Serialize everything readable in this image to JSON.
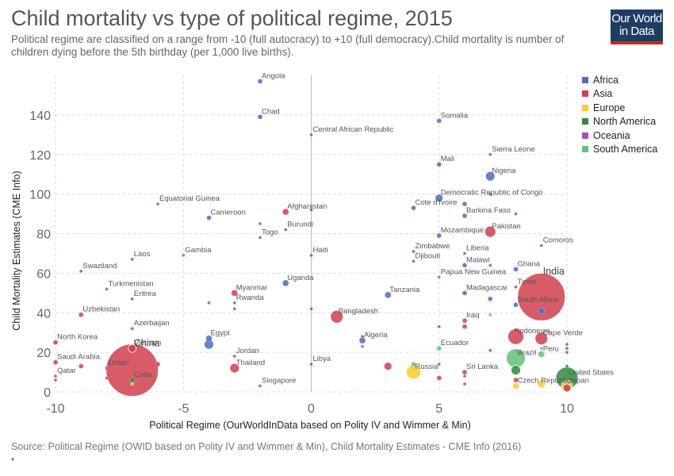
{
  "page": {
    "title": "Child mortality vs type of political regime, 2015",
    "subtitle": "Political regime are classified on a range from -10 (full autocracy) to +10 (full democracy).Child mortality is number of children dying before the 5th birthday (per 1,000 live births).",
    "logo_line1": "Our World",
    "logo_line2": "in Data",
    "source": "Source: Political Regime (OWID based on Polity IV and Wimmer & Min), Child Mortality Estimates - CME Info (2016)",
    "source_dot": "•"
  },
  "legend": [
    {
      "name": "Africa",
      "color": "#4c6cbf"
    },
    {
      "name": "Asia",
      "color": "#d0404e"
    },
    {
      "name": "Europe",
      "color": "#fbca2c"
    },
    {
      "name": "North America",
      "color": "#2f8b3e"
    },
    {
      "name": "Oceania",
      "color": "#a651b8"
    },
    {
      "name": "South America",
      "color": "#5fc279"
    }
  ],
  "chart_data": {
    "type": "scatter",
    "title": "Child mortality vs type of political regime, 2015",
    "xlabel": "Political Regime (OurWorldInData based on Polity IV and Wimmer & Min)",
    "ylabel": "Child Mortality Estimates (CME Info)",
    "xlim": [
      -10,
      10
    ],
    "ylim": [
      0,
      160
    ],
    "x_ticks": [
      "-10",
      "-5",
      "0",
      "5",
      "10"
    ],
    "y_ticks": [
      "0",
      "20",
      "40",
      "60",
      "80",
      "100",
      "120",
      "140"
    ],
    "grid": true,
    "legend_position": "right",
    "size_note": "bubble size proportional to population",
    "points": [
      {
        "label": "Angola",
        "x": -2,
        "y": 157,
        "region": "Africa",
        "size": 3
      },
      {
        "label": "Chad",
        "x": -2,
        "y": 139,
        "region": "Africa",
        "size": 3
      },
      {
        "label": "Central African Republic",
        "x": 0,
        "y": 130,
        "region": "Africa",
        "size": 2
      },
      {
        "label": "Somalia",
        "x": 5,
        "y": 137,
        "region": "Africa",
        "size": 3
      },
      {
        "label": "Sierra Leone",
        "x": 7,
        "y": 120,
        "region": "Africa",
        "size": 2
      },
      {
        "label": "Mali",
        "x": 5,
        "y": 115,
        "region": "Africa",
        "size": 3
      },
      {
        "label": "Nigeria",
        "x": 7,
        "y": 109,
        "region": "Africa",
        "size": 6
      },
      {
        "label": "Democratic Republic of Congo",
        "x": 5,
        "y": 98,
        "region": "Africa",
        "size": 5
      },
      {
        "label": "",
        "x": 7,
        "y": 100,
        "region": "Africa",
        "size": 2
      },
      {
        "label": "Equatorial Guinea",
        "x": -6,
        "y": 95,
        "region": "Africa",
        "size": 2
      },
      {
        "label": "Afghanistan",
        "x": -1,
        "y": 91,
        "region": "Asia",
        "size": 4
      },
      {
        "label": "",
        "x": 0,
        "y": 92,
        "region": "Africa",
        "size": 2
      },
      {
        "label": "Cameroon",
        "x": -4,
        "y": 88,
        "region": "Africa",
        "size": 3
      },
      {
        "label": "Cote d'Ivoire",
        "x": 4,
        "y": 93,
        "region": "Africa",
        "size": 3
      },
      {
        "label": "",
        "x": 6,
        "y": 95,
        "region": "Africa",
        "size": 3
      },
      {
        "label": "Burkina Faso",
        "x": 6,
        "y": 89,
        "region": "Africa",
        "size": 3
      },
      {
        "label": "",
        "x": 8,
        "y": 90,
        "region": "Africa",
        "size": 2
      },
      {
        "label": "Burundi",
        "x": -1,
        "y": 82,
        "region": "Africa",
        "size": 2
      },
      {
        "label": "",
        "x": -2,
        "y": 85,
        "region": "Africa",
        "size": 2
      },
      {
        "label": "Togo",
        "x": -2,
        "y": 78,
        "region": "Africa",
        "size": 2
      },
      {
        "label": "Pakistan",
        "x": 7,
        "y": 81,
        "region": "Asia",
        "size": 7
      },
      {
        "label": "Mozambique",
        "x": 5,
        "y": 79,
        "region": "Africa",
        "size": 3
      },
      {
        "label": "Comoros",
        "x": 9,
        "y": 74,
        "region": "Africa",
        "size": 2
      },
      {
        "label": "Gambia",
        "x": -5,
        "y": 69,
        "region": "Oceania",
        "size": 2
      },
      {
        "label": "Haiti",
        "x": 0,
        "y": 69,
        "region": "North America",
        "size": 2
      },
      {
        "label": "Laos",
        "x": -7,
        "y": 67,
        "region": "Asia",
        "size": 2
      },
      {
        "label": "Zimbabwe",
        "x": 4,
        "y": 71,
        "region": "Africa",
        "size": 2
      },
      {
        "label": "Djibouti",
        "x": 4,
        "y": 66,
        "region": "Africa",
        "size": 2
      },
      {
        "label": "Liberia",
        "x": 6,
        "y": 70,
        "region": "Africa",
        "size": 2
      },
      {
        "label": "Malawi",
        "x": 6,
        "y": 64,
        "region": "Africa",
        "size": 3
      },
      {
        "label": "Ghana",
        "x": 8,
        "y": 62,
        "region": "Africa",
        "size": 3
      },
      {
        "label": "",
        "x": 7,
        "y": 64,
        "region": "Africa",
        "size": 2
      },
      {
        "label": "Swaziland",
        "x": -9,
        "y": 61,
        "region": "Africa",
        "size": 2
      },
      {
        "label": "Papua New Guinea",
        "x": 5,
        "y": 58,
        "region": "Oceania",
        "size": 2
      },
      {
        "label": "Uganda",
        "x": -1,
        "y": 55,
        "region": "Africa",
        "size": 4
      },
      {
        "label": "Turkmenistan",
        "x": -8,
        "y": 52,
        "region": "Asia",
        "size": 2
      },
      {
        "label": "Myanmar",
        "x": -3,
        "y": 50,
        "region": "Asia",
        "size": 4
      },
      {
        "label": "Tanzania",
        "x": 3,
        "y": 49,
        "region": "Africa",
        "size": 4
      },
      {
        "label": "Madagascar",
        "x": 6,
        "y": 50,
        "region": "Africa",
        "size": 3
      },
      {
        "label": "Timor",
        "x": 8,
        "y": 53,
        "region": "Asia",
        "size": 2
      },
      {
        "label": "India",
        "x": 9,
        "y": 48,
        "region": "Asia",
        "size": 30
      },
      {
        "label": "Eritrea",
        "x": -7,
        "y": 47,
        "region": "Africa",
        "size": 2
      },
      {
        "label": "Rwanda",
        "x": -3,
        "y": 45,
        "region": "Africa",
        "size": 2
      },
      {
        "label": "",
        "x": -4,
        "y": 45,
        "region": "Africa",
        "size": 2
      },
      {
        "label": "",
        "x": 7,
        "y": 47,
        "region": "Africa",
        "size": 3
      },
      {
        "label": "South Africa",
        "x": 8,
        "y": 44,
        "region": "Africa",
        "size": 3
      },
      {
        "label": "",
        "x": -3,
        "y": 42,
        "region": "Africa",
        "size": 2
      },
      {
        "label": "",
        "x": 0,
        "y": 42,
        "region": "Asia",
        "size": 2
      },
      {
        "label": "Bangladesh",
        "x": 1,
        "y": 38,
        "region": "Asia",
        "size": 8
      },
      {
        "label": "Uzbekistan",
        "x": -9,
        "y": 39,
        "region": "Asia",
        "size": 3
      },
      {
        "label": "",
        "x": 9,
        "y": 41,
        "region": "Africa",
        "size": 4
      },
      {
        "label": "",
        "x": 7,
        "y": 39,
        "region": "South America",
        "size": 2
      },
      {
        "label": "Iraq",
        "x": 6,
        "y": 36,
        "region": "Asia",
        "size": 3
      },
      {
        "label": "",
        "x": 5,
        "y": 33,
        "region": "Asia",
        "size": 2
      },
      {
        "label": "",
        "x": 6,
        "y": 33,
        "region": "Asia",
        "size": 3
      },
      {
        "label": "Azerbaijan",
        "x": -7,
        "y": 32,
        "region": "Asia",
        "size": 2
      },
      {
        "label": "Indonesia",
        "x": 8,
        "y": 28,
        "region": "Asia",
        "size": 10
      },
      {
        "label": "",
        "x": 8,
        "y": 31,
        "region": "Asia",
        "size": 3
      },
      {
        "label": "Cape Verde",
        "x": 9,
        "y": 27,
        "region": "Asia",
        "size": 8
      },
      {
        "label": "",
        "x": 10,
        "y": 24,
        "region": "Africa",
        "size": 2
      },
      {
        "label": "",
        "x": 10,
        "y": 22,
        "region": "Asia",
        "size": 2
      },
      {
        "label": "",
        "x": 10,
        "y": 20,
        "region": "North America",
        "size": 2
      },
      {
        "label": "Egypt",
        "x": -4,
        "y": 27,
        "region": "Africa",
        "size": 4
      },
      {
        "label": "",
        "x": -4,
        "y": 24,
        "region": "Africa",
        "size": 6
      },
      {
        "label": "Algeria",
        "x": 2,
        "y": 26,
        "region": "Africa",
        "size": 4
      },
      {
        "label": "",
        "x": 2,
        "y": 28,
        "region": "Asia",
        "size": 2
      },
      {
        "label": "",
        "x": 2,
        "y": 23,
        "region": "Oceania",
        "size": 2
      },
      {
        "label": "North Korea",
        "x": -10,
        "y": 25,
        "region": "Asia",
        "size": 3
      },
      {
        "label": "Vietnam",
        "x": -7,
        "y": 22,
        "region": "Asia",
        "size": 5
      },
      {
        "label": "China",
        "x": -7,
        "y": 11,
        "region": "Asia",
        "size": 33
      },
      {
        "label": "Ecuador",
        "x": 5,
        "y": 22,
        "region": "South America",
        "size": 3
      },
      {
        "label": "Brazil",
        "x": 8,
        "y": 17,
        "region": "South America",
        "size": 12
      },
      {
        "label": "",
        "x": 7,
        "y": 21,
        "region": "Asia",
        "size": 2
      },
      {
        "label": "Peru",
        "x": 9,
        "y": 19,
        "region": "South America",
        "size": 4
      },
      {
        "label": "",
        "x": 9,
        "y": 22,
        "region": "South America",
        "size": 2
      },
      {
        "label": "Jordan",
        "x": -3,
        "y": 18,
        "region": "Asia",
        "size": 2
      },
      {
        "label": "Thailand",
        "x": -3,
        "y": 12,
        "region": "Asia",
        "size": 6
      },
      {
        "label": "Saudi Arabia",
        "x": -10,
        "y": 15,
        "region": "Asia",
        "size": 3
      },
      {
        "label": "",
        "x": -9,
        "y": 13,
        "region": "Asia",
        "size": 3
      },
      {
        "label": "Oman",
        "x": -8,
        "y": 12,
        "region": "Asia",
        "size": 2
      },
      {
        "label": "",
        "x": -6,
        "y": 14,
        "region": "Asia",
        "size": 3
      },
      {
        "label": "Cuba",
        "x": -7,
        "y": 6,
        "region": "North America",
        "size": 3
      },
      {
        "label": "Qatar",
        "x": -10,
        "y": 8,
        "region": "Asia",
        "size": 2
      },
      {
        "label": "",
        "x": -10,
        "y": 6,
        "region": "Asia",
        "size": 2
      },
      {
        "label": "",
        "x": -8,
        "y": 7,
        "region": "Asia",
        "size": 2
      },
      {
        "label": "",
        "x": -7,
        "y": 4,
        "region": "Europe",
        "size": 2
      },
      {
        "label": "Libya",
        "x": 0,
        "y": 14,
        "region": "Africa",
        "size": 2
      },
      {
        "label": "Russia",
        "x": 4,
        "y": 10,
        "region": "Europe",
        "size": 9
      },
      {
        "label": "",
        "x": 4,
        "y": 14,
        "region": "South America",
        "size": 3
      },
      {
        "label": "",
        "x": 3,
        "y": 13,
        "region": "Asia",
        "size": 5
      },
      {
        "label": "",
        "x": 5,
        "y": 14,
        "region": "Asia",
        "size": 2
      },
      {
        "label": "Sri Lanka",
        "x": 6,
        "y": 10,
        "region": "Asia",
        "size": 3
      },
      {
        "label": "",
        "x": 6,
        "y": 8,
        "region": "Asia",
        "size": 2
      },
      {
        "label": "",
        "x": 5,
        "y": 7,
        "region": "Asia",
        "size": 3
      },
      {
        "label": "United States",
        "x": 10,
        "y": 7,
        "region": "North America",
        "size": 14
      },
      {
        "label": "",
        "x": 8,
        "y": 11,
        "region": "North America",
        "size": 6
      },
      {
        "label": "Czech Republic",
        "x": 8,
        "y": 3,
        "region": "Europe",
        "size": 4
      },
      {
        "label": "",
        "x": 8,
        "y": 6,
        "region": "Asia",
        "size": 3
      },
      {
        "label": "Japan",
        "x": 10,
        "y": 3,
        "region": "Europe",
        "size": 7
      },
      {
        "label": "",
        "x": 9,
        "y": 4,
        "region": "Europe",
        "size": 5
      },
      {
        "label": "",
        "x": 10,
        "y": 2,
        "region": "Asia",
        "size": 5
      },
      {
        "label": "",
        "x": 10,
        "y": 13,
        "region": "North America",
        "size": 2
      },
      {
        "label": "",
        "x": 6,
        "y": 4,
        "region": "Asia",
        "size": 2
      },
      {
        "label": "Singapore",
        "x": -2,
        "y": 3,
        "region": "Asia",
        "size": 2
      }
    ]
  }
}
